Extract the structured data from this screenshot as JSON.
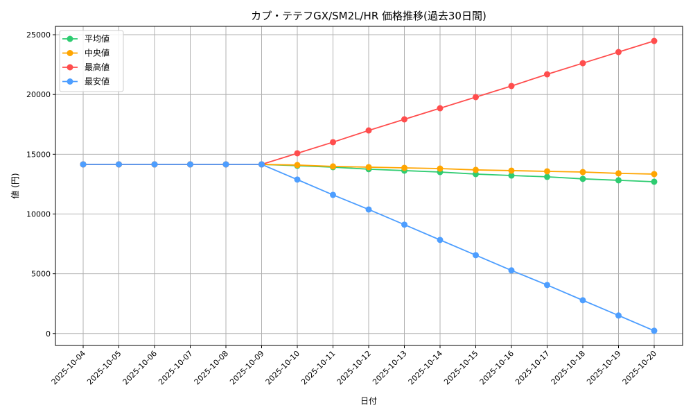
{
  "chart_data": {
    "type": "line",
    "title": "カプ・テテフGX/SM2L/HR 価格推移(過去30日間)",
    "xlabel": "日付",
    "ylabel": "値 (円)",
    "ylim": [
      -1000,
      25700
    ],
    "yticks": [
      0,
      5000,
      10000,
      15000,
      20000,
      25000
    ],
    "grid": true,
    "legend_position": "top-left",
    "categories": [
      "2025-10-04",
      "2025-10-05",
      "2025-10-06",
      "2025-10-07",
      "2025-10-08",
      "2025-10-09",
      "2025-10-10",
      "2025-10-11",
      "2025-10-12",
      "2025-10-13",
      "2025-10-14",
      "2025-10-15",
      "2025-10-16",
      "2025-10-17",
      "2025-10-18",
      "2025-10-19",
      "2025-10-20"
    ],
    "series": [
      {
        "name": "平均値",
        "color": "#2ecc71",
        "values": [
          14150,
          14150,
          14150,
          14150,
          14150,
          14150,
          14040,
          13920,
          13750,
          13630,
          13510,
          13340,
          13220,
          13110,
          12940,
          12820,
          12700
        ]
      },
      {
        "name": "中央値",
        "color": "#ffa500",
        "values": [
          14150,
          14150,
          14150,
          14150,
          14150,
          14150,
          14095,
          13980,
          13920,
          13860,
          13800,
          13690,
          13630,
          13570,
          13510,
          13400,
          13340
        ]
      },
      {
        "name": "最高値",
        "color": "#ff4d4d",
        "values": [
          14150,
          14150,
          14150,
          14150,
          14150,
          14150,
          15080,
          16010,
          16990,
          17920,
          18850,
          19780,
          20710,
          21690,
          22620,
          23550,
          24480
        ]
      },
      {
        "name": "最安値",
        "color": "#4d9eff",
        "values": [
          14150,
          14150,
          14150,
          14150,
          14150,
          14150,
          12880,
          11600,
          10380,
          9110,
          7830,
          6555,
          5280,
          4060,
          2780,
          1510,
          230
        ]
      }
    ]
  }
}
